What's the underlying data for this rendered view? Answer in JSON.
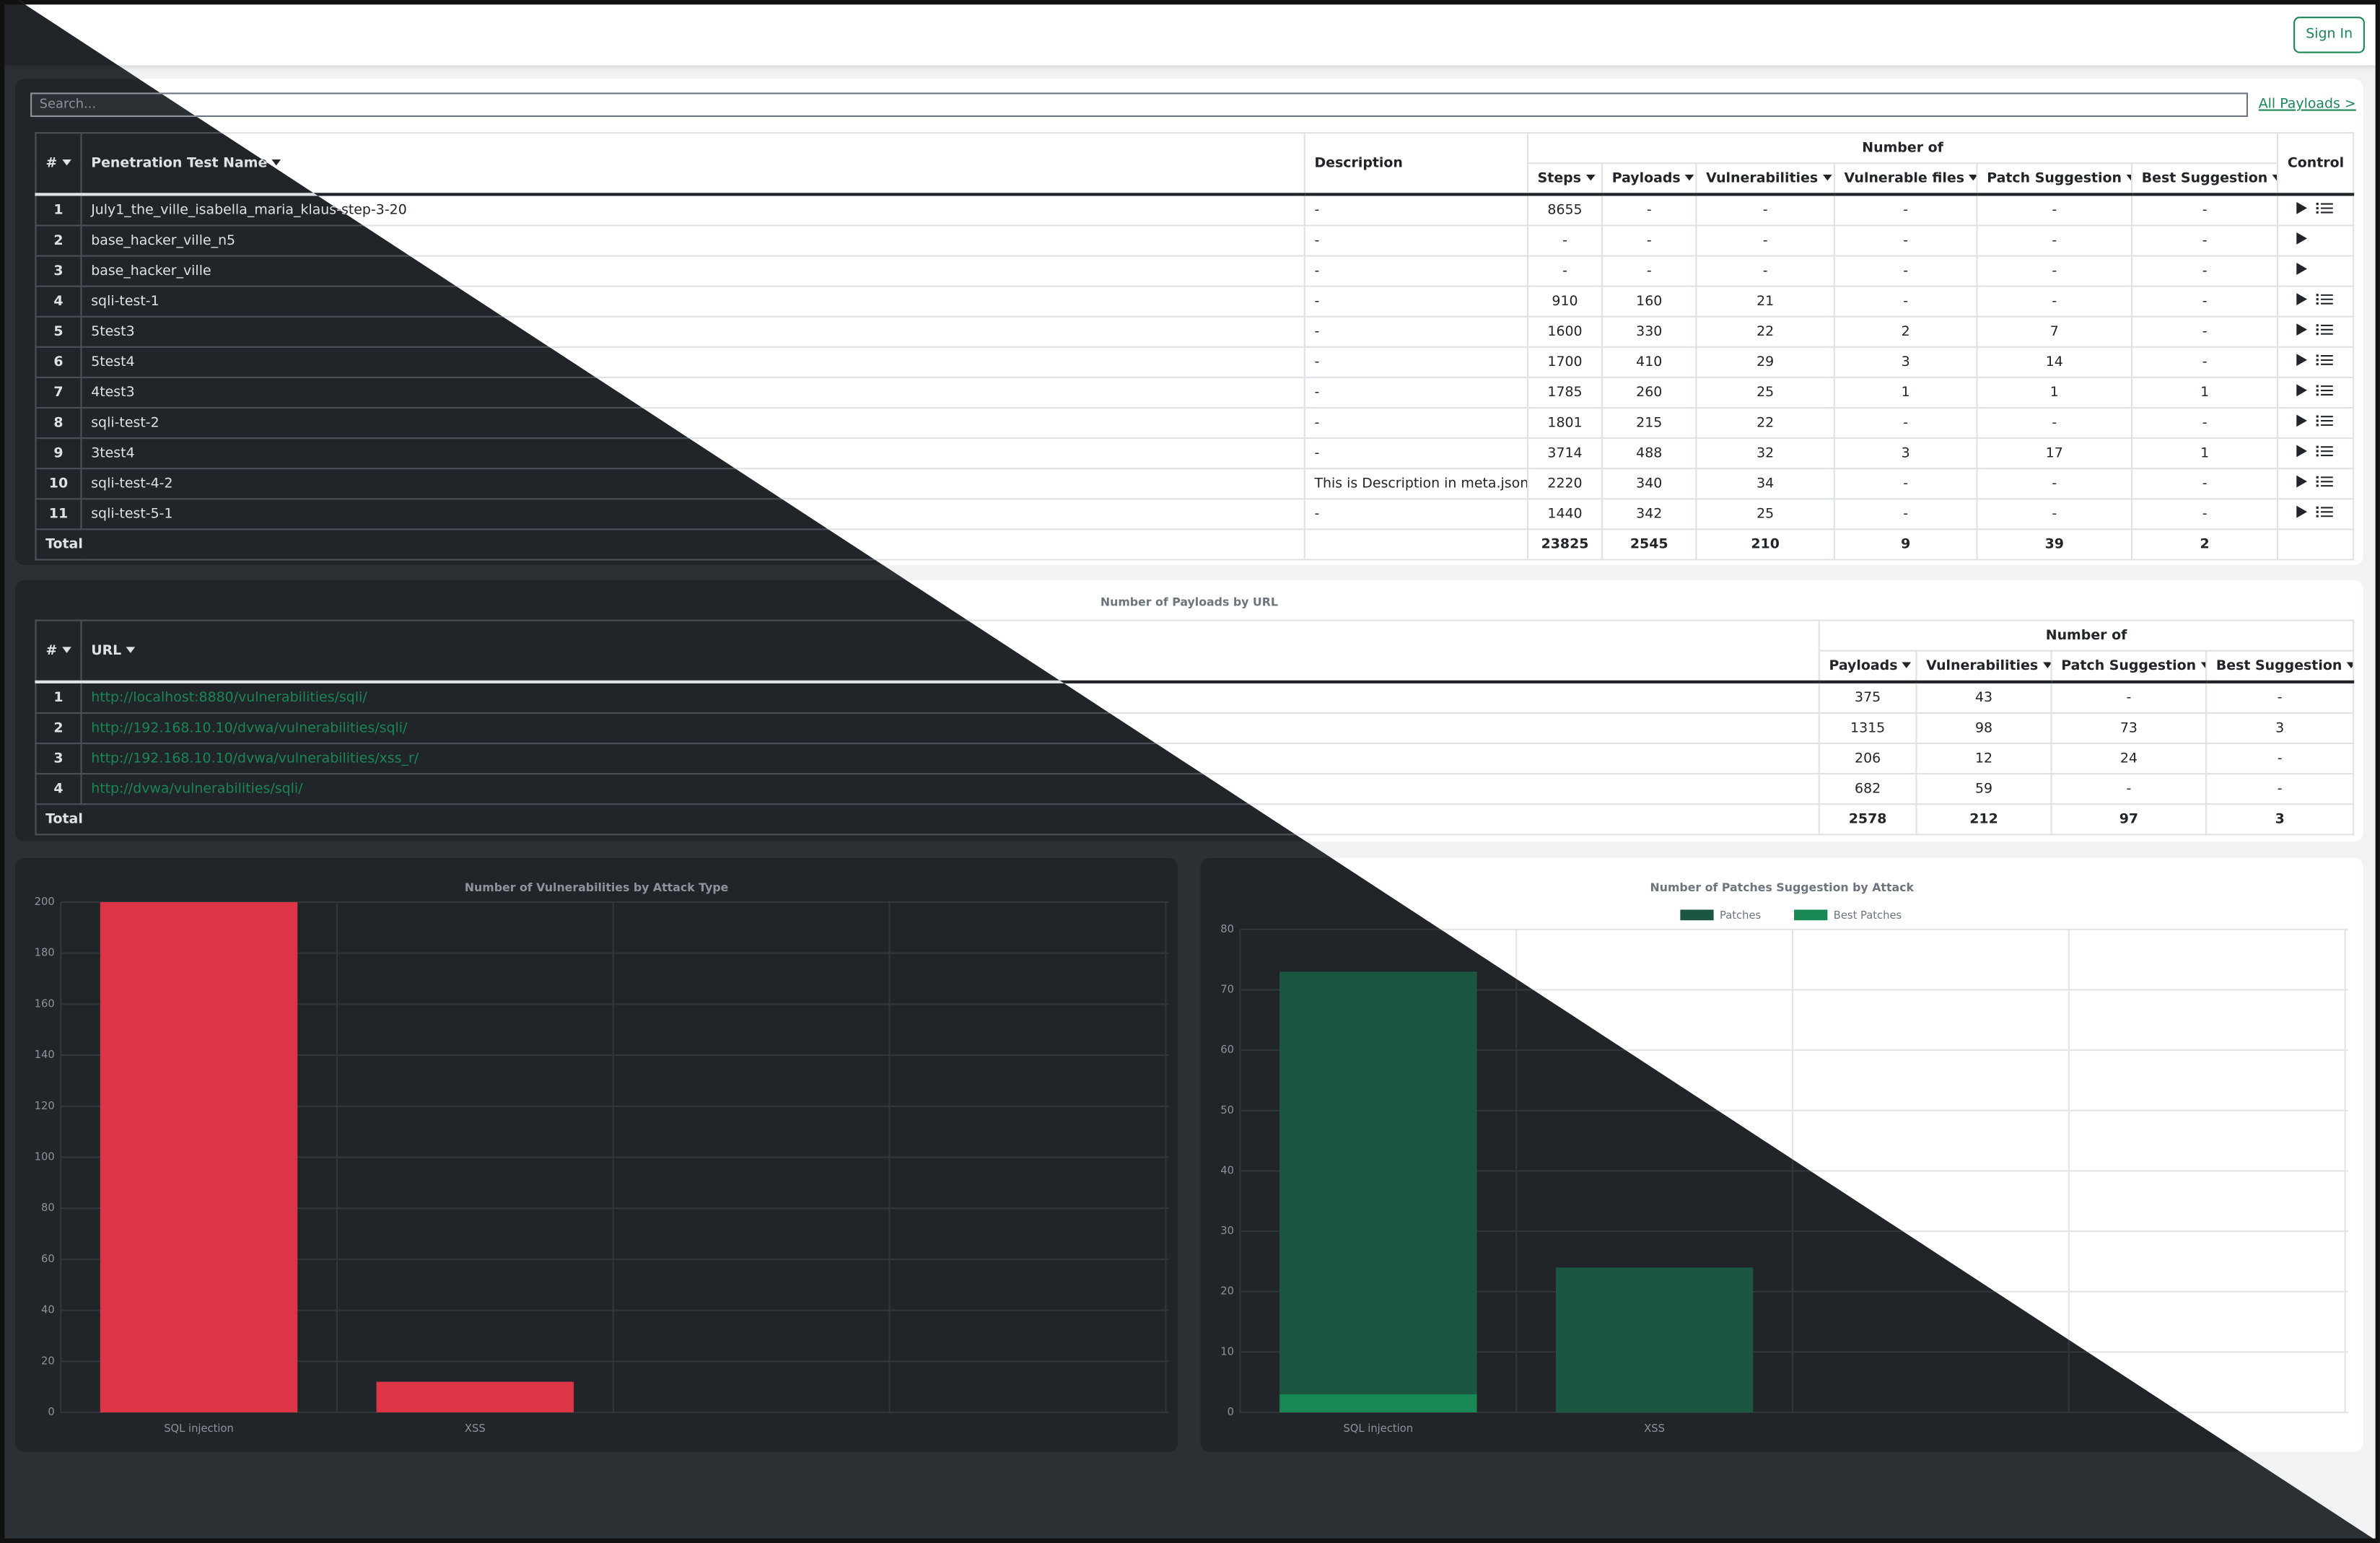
{
  "header": {
    "sign_in": "Sign In"
  },
  "search": {
    "placeholder": "Search...",
    "all_payloads": "All Payloads >"
  },
  "tests_table": {
    "columns": {
      "index": "#",
      "name": "Penetration Test Name",
      "description": "Description",
      "group": "Number of",
      "steps": "Steps",
      "payloads": "Payloads",
      "vulnerabilities": "Vulnerabilities",
      "vulnerable_files": "Vulnerable files",
      "patch_suggestion": "Patch Suggestion",
      "best_suggestion": "Best Suggestion",
      "control": "Control"
    },
    "rows": [
      [
        "1",
        "July1_the_ville_isabella_maria_klaus-step-3-20",
        "-",
        "8655",
        "-",
        "-",
        "-",
        "-",
        "-"
      ],
      [
        "2",
        "base_hacker_ville_n5",
        "-",
        "-",
        "-",
        "-",
        "-",
        "-",
        "-"
      ],
      [
        "3",
        "base_hacker_ville",
        "-",
        "-",
        "-",
        "-",
        "-",
        "-",
        "-"
      ],
      [
        "4",
        "sqli-test-1",
        "-",
        "910",
        "160",
        "21",
        "-",
        "-",
        "-"
      ],
      [
        "5",
        "5test3",
        "-",
        "1600",
        "330",
        "22",
        "2",
        "7",
        "-"
      ],
      [
        "6",
        "5test4",
        "-",
        "1700",
        "410",
        "29",
        "3",
        "14",
        "-"
      ],
      [
        "7",
        "4test3",
        "-",
        "1785",
        "260",
        "25",
        "1",
        "1",
        "1"
      ],
      [
        "8",
        "sqli-test-2",
        "-",
        "1801",
        "215",
        "22",
        "-",
        "-",
        "-"
      ],
      [
        "9",
        "3test4",
        "-",
        "3714",
        "488",
        "32",
        "3",
        "17",
        "1"
      ],
      [
        "10",
        "sqli-test-4-2",
        "This is Description in meta.json",
        "2220",
        "340",
        "34",
        "-",
        "-",
        "-"
      ],
      [
        "11",
        "sqli-test-5-1",
        "-",
        "1440",
        "342",
        "25",
        "-",
        "-",
        "-"
      ]
    ],
    "total": {
      "label": "Total",
      "values": [
        "23825",
        "2545",
        "210",
        "9",
        "39",
        "2"
      ]
    }
  },
  "url_table": {
    "title": "Number of Payloads by URL",
    "columns": {
      "index": "#",
      "url": "URL",
      "group": "Number of",
      "payloads": "Payloads",
      "vulnerabilities": "Vulnerabilities",
      "patch_suggestion": "Patch Suggestion",
      "best_suggestion": "Best Suggestion"
    },
    "rows": [
      [
        "1",
        "http://localhost:8880/vulnerabilities/sqli/",
        "375",
        "43",
        "-",
        "-"
      ],
      [
        "2",
        "http://192.168.10.10/dvwa/vulnerabilities/sqli/",
        "1315",
        "98",
        "73",
        "3"
      ],
      [
        "3",
        "http://192.168.10.10/dvwa/vulnerabilities/xss_r/",
        "206",
        "12",
        "24",
        "-"
      ],
      [
        "4",
        "http://dvwa/vulnerabilities/sqli/",
        "682",
        "59",
        "-",
        "-"
      ]
    ],
    "total": {
      "label": "Total",
      "values": [
        "2578",
        "212",
        "97",
        "3"
      ]
    }
  },
  "chart_data": [
    {
      "type": "bar",
      "title": "Number of Vulnerabilities by Attack Type",
      "categories": [
        "SQL injection",
        "XSS"
      ],
      "values": [
        200,
        12
      ],
      "color": "#dc3545",
      "ylim": [
        0,
        200
      ],
      "yticks": [
        0,
        20,
        40,
        60,
        80,
        100,
        120,
        140,
        160,
        180,
        200
      ],
      "grid": true
    },
    {
      "type": "bar",
      "title": "Number of Patches Suggestion by Attack",
      "categories": [
        "SQL injection",
        "XSS"
      ],
      "series": [
        {
          "name": "Patches",
          "color": "#1b5640",
          "values": [
            73,
            24
          ]
        },
        {
          "name": "Best Patches",
          "color": "#198754",
          "values": [
            3,
            0
          ]
        }
      ],
      "ylim": [
        0,
        80
      ],
      "yticks": [
        0,
        10,
        20,
        30,
        40,
        50,
        60,
        70,
        80
      ],
      "grid": true,
      "legend": "top"
    }
  ]
}
